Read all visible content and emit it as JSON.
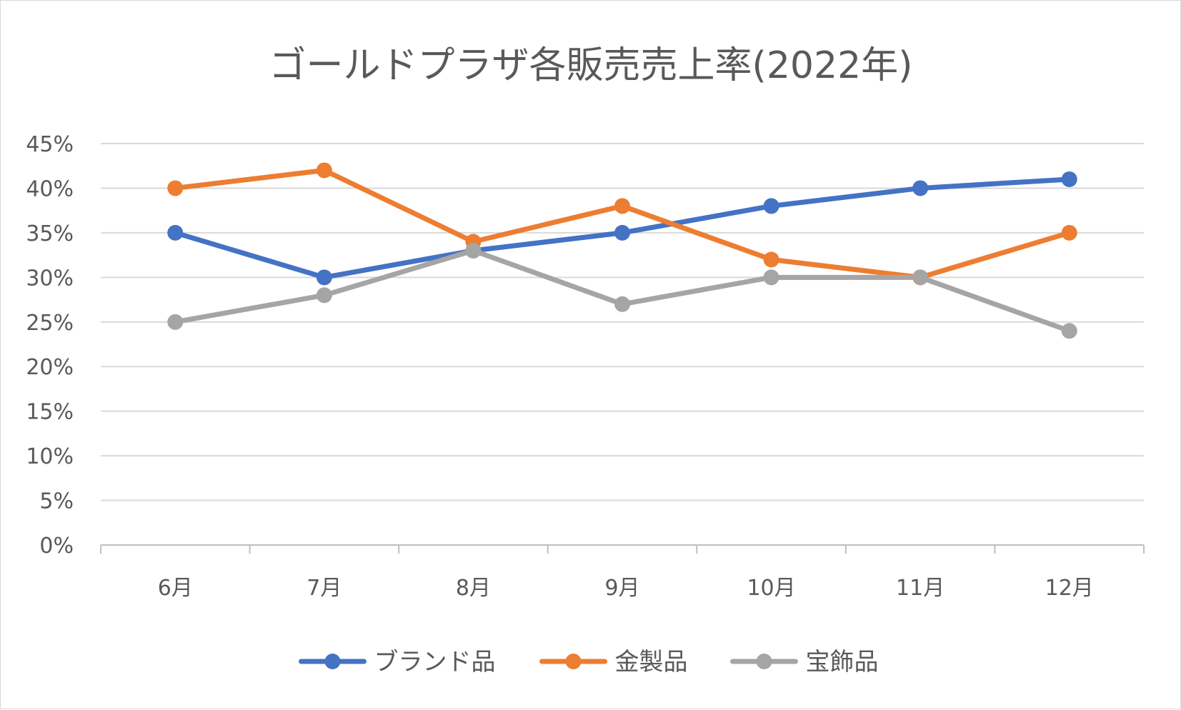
{
  "chart_data": {
    "type": "line",
    "title": "ゴールドプラザ各販売売上率(2022年)",
    "xlabel": "",
    "ylabel": "",
    "categories": [
      "6月",
      "7月",
      "8月",
      "9月",
      "10月",
      "11月",
      "12月"
    ],
    "ylim": [
      0,
      45
    ],
    "yticks": [
      0,
      5,
      10,
      15,
      20,
      25,
      30,
      35,
      40,
      45
    ],
    "ytick_labels": [
      "0%",
      "5%",
      "10%",
      "15%",
      "20%",
      "25%",
      "30%",
      "35%",
      "40%",
      "45%"
    ],
    "grid": true,
    "legend_position": "bottom",
    "series": [
      {
        "name": "ブランド品",
        "color": "#4472c4",
        "values": [
          35,
          30,
          33,
          35,
          38,
          40,
          41
        ]
      },
      {
        "name": "金製品",
        "color": "#ed7d31",
        "values": [
          40,
          42,
          34,
          38,
          32,
          30,
          35
        ]
      },
      {
        "name": "宝飾品",
        "color": "#a5a5a5",
        "values": [
          25,
          28,
          33,
          27,
          30,
          30,
          24
        ]
      }
    ]
  }
}
